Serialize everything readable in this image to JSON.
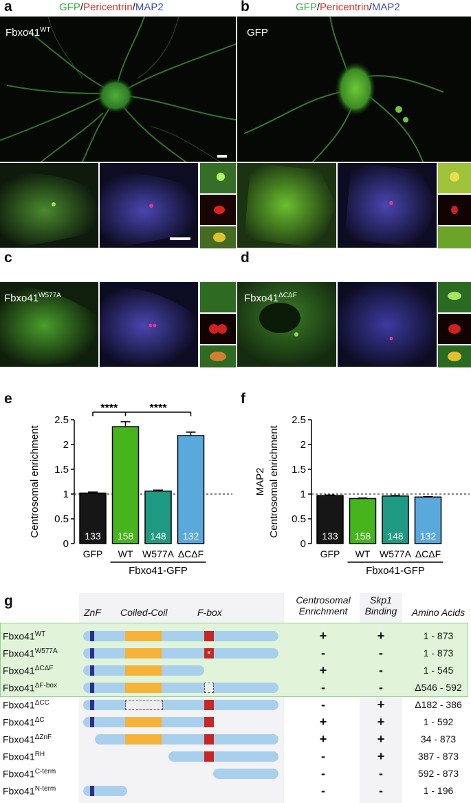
{
  "panels": {
    "a": {
      "letter": "a",
      "title_gfp": "GFP",
      "title_pcnt": "Pericentrin",
      "title_map2": "MAP2",
      "label_base": "Fbxo41",
      "label_sup": "WT"
    },
    "b": {
      "letter": "b",
      "title_gfp": "GFP",
      "title_pcnt": "Pericentrin",
      "title_map2": "MAP2",
      "label_base": "GFP",
      "label_sup": ""
    },
    "c": {
      "letter": "c",
      "label_base": "Fbxo41",
      "label_sup": "W577A"
    },
    "d": {
      "letter": "d",
      "label_base": "Fbxo41",
      "label_sup": "ΔCΔF"
    }
  },
  "slash": "/",
  "chart_data": [
    {
      "panel": "e",
      "type": "bar",
      "categories": [
        "GFP",
        "WT",
        "W577A",
        "ΔCΔF"
      ],
      "values": [
        1.02,
        2.36,
        1.06,
        2.18
      ],
      "errors": [
        0.02,
        0.1,
        0.02,
        0.07
      ],
      "counts": [
        "133",
        "158",
        "148",
        "132"
      ],
      "colors": [
        "#161616",
        "#46b51b",
        "#1f9a82",
        "#5aa9dc"
      ],
      "ylabel": "Centrosomal enrichment",
      "ylabel2": "",
      "yticks": [
        "0",
        "0.5",
        "1",
        "1.5",
        "2",
        "2.5"
      ],
      "ylim": [
        0,
        2.5
      ],
      "reference_line": 1,
      "group_label": "Fbxo41-GFP",
      "significance": [
        "****",
        "****"
      ]
    },
    {
      "panel": "f",
      "type": "bar",
      "categories": [
        "GFP",
        "WT",
        "W577A",
        "ΔCΔF"
      ],
      "values": [
        0.97,
        0.91,
        0.96,
        0.94
      ],
      "errors": [
        0.01,
        0.01,
        0.01,
        0.01
      ],
      "counts": [
        "133",
        "158",
        "148",
        "132"
      ],
      "colors": [
        "#161616",
        "#46b51b",
        "#1f9a82",
        "#5aa9dc"
      ],
      "ylabel": "Centrosomal enrichment",
      "ylabel2": "MAP2",
      "yticks": [
        "0",
        "0.5",
        "1",
        "1.5",
        "2",
        "2.5"
      ],
      "ylim": [
        0,
        2.5
      ],
      "reference_line": 1,
      "group_label": "Fbxo41-GFP",
      "significance": []
    }
  ],
  "chart_letters": {
    "e": "e",
    "f": "f"
  },
  "g": {
    "letter": "g",
    "headers": {
      "znf": "ZnF",
      "cc": "Coiled-Coil",
      "fbox": "F-box",
      "enrich1": "Centrosomal",
      "enrich2": "Enrichment",
      "skp1": "Skp1",
      "skp2": "Binding",
      "aa": "Amino Acids"
    },
    "rows": [
      {
        "base": "Fbxo41",
        "sup": "WT",
        "enrich": "+",
        "skp1": "+",
        "aa": "1 - 873",
        "hl": true
      },
      {
        "base": "Fbxo41",
        "sup": "W577A",
        "enrich": "-",
        "skp1": "-",
        "aa": "1 - 873",
        "hl": true
      },
      {
        "base": "Fbxo41",
        "sup": "ΔCΔF",
        "enrich": "+",
        "skp1": "-",
        "aa": "1 - 545",
        "hl": true
      },
      {
        "base": "Fbxo41",
        "sup": "ΔF-box",
        "enrich": "-",
        "skp1": "-",
        "aa": "Δ546 - 592",
        "hl": false
      },
      {
        "base": "Fbxo41",
        "sup": "ΔCC",
        "enrich": "-",
        "skp1": "+",
        "aa": "Δ182 - 386",
        "hl": false
      },
      {
        "base": "Fbxo41",
        "sup": "ΔC",
        "enrich": "+",
        "skp1": "+",
        "aa": "1 - 592",
        "hl": false
      },
      {
        "base": "Fbxo41",
        "sup": "ΔZnF",
        "enrich": "+",
        "skp1": "+",
        "aa": "34 - 873",
        "hl": false
      },
      {
        "base": "Fbxo41",
        "sup": "RH",
        "enrich": "-",
        "skp1": "+",
        "aa": "387 - 873",
        "hl": false
      },
      {
        "base": "Fbxo41",
        "sup": "C-term",
        "enrich": "-",
        "skp1": "-",
        "aa": "592 - 873",
        "hl": false
      },
      {
        "base": "Fbxo41",
        "sup": "N-term",
        "enrich": "-",
        "skp1": "-",
        "aa": "1 - 196",
        "hl": false
      }
    ],
    "mutation_mark": "*"
  }
}
